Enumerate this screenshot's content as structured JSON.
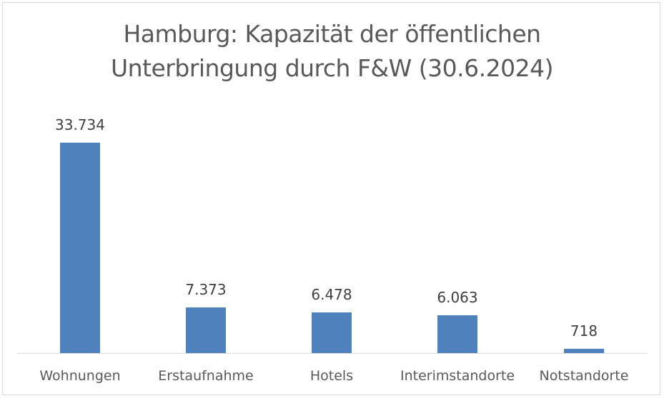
{
  "chart_data": {
    "type": "bar",
    "title": "Hamburg: Kapazität der öffentlichen Unterbringung durch F&W (30.6.2024)",
    "title_lines": [
      "Hamburg: Kapazität der öffentlichen",
      "Unterbringung durch F&W (30.6.2024)"
    ],
    "categories": [
      "Wohnungen",
      "Erstaufnahme",
      "Hotels",
      "Interimstandorte",
      "Notstandorte"
    ],
    "values": [
      33734,
      7373,
      6478,
      6063,
      718
    ],
    "value_labels": [
      "33.734",
      "7.373",
      "6.478",
      "6.063",
      "718"
    ],
    "xlabel": "",
    "ylabel": "",
    "ylim": [
      0,
      33734
    ],
    "grid": false,
    "legend": null,
    "bar_color": "#4f81bd"
  }
}
